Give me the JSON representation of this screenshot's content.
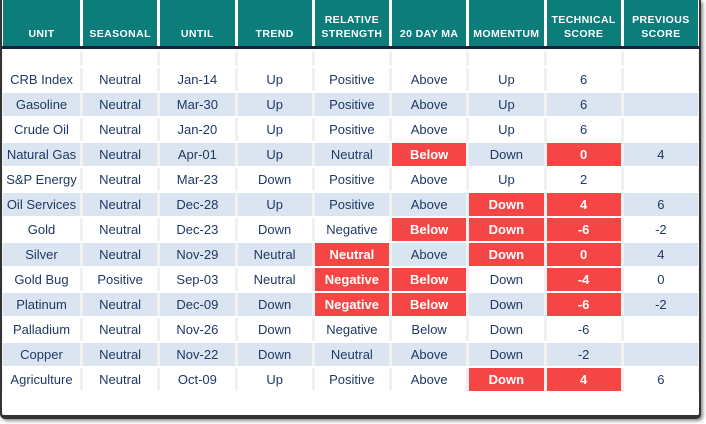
{
  "table": {
    "columns": [
      {
        "key": "unit",
        "label": "UNIT"
      },
      {
        "key": "seasonal",
        "label": "SEASONAL"
      },
      {
        "key": "until",
        "label": "UNTIL"
      },
      {
        "key": "trend",
        "label": "TREND"
      },
      {
        "key": "relative_strength",
        "label": "RELATIVE STRENGTH"
      },
      {
        "key": "ma_20",
        "label": "20 DAY MA"
      },
      {
        "key": "momentum",
        "label": "MOMENTUM"
      },
      {
        "key": "technical_score",
        "label": "TECHNICAL SCORE"
      },
      {
        "key": "previous_score",
        "label": "PREVIOUS SCORE"
      }
    ],
    "rows": [
      {
        "unit": "CRB Index",
        "seasonal": "Neutral",
        "until": "Jan-14",
        "trend": "Up",
        "relative_strength": "Positive",
        "ma_20": "Above",
        "momentum": "Up",
        "technical_score": "6",
        "previous_score": "",
        "highlighted": []
      },
      {
        "unit": "Gasoline",
        "seasonal": "Neutral",
        "until": "Mar-30",
        "trend": "Up",
        "relative_strength": "Positive",
        "ma_20": "Above",
        "momentum": "Up",
        "technical_score": "6",
        "previous_score": "",
        "highlighted": []
      },
      {
        "unit": "Crude Oil",
        "seasonal": "Neutral",
        "until": "Jan-20",
        "trend": "Up",
        "relative_strength": "Positive",
        "ma_20": "Above",
        "momentum": "Up",
        "technical_score": "6",
        "previous_score": "",
        "highlighted": []
      },
      {
        "unit": "Natural Gas",
        "seasonal": "Neutral",
        "until": "Apr-01",
        "trend": "Up",
        "relative_strength": "Neutral",
        "ma_20": "Below",
        "momentum": "Down",
        "technical_score": "0",
        "previous_score": "4",
        "highlighted": [
          "ma_20",
          "technical_score"
        ]
      },
      {
        "unit": "S&P Energy",
        "seasonal": "Neutral",
        "until": "Mar-23",
        "trend": "Down",
        "relative_strength": "Positive",
        "ma_20": "Above",
        "momentum": "Up",
        "technical_score": "2",
        "previous_score": "",
        "highlighted": []
      },
      {
        "unit": "Oil Services",
        "seasonal": "Neutral",
        "until": "Dec-28",
        "trend": "Up",
        "relative_strength": "Positive",
        "ma_20": "Above",
        "momentum": "Down",
        "technical_score": "4",
        "previous_score": "6",
        "highlighted": [
          "momentum",
          "technical_score"
        ]
      },
      {
        "unit": "Gold",
        "seasonal": "Neutral",
        "until": "Dec-23",
        "trend": "Down",
        "relative_strength": "Negative",
        "ma_20": "Below",
        "momentum": "Down",
        "technical_score": "-6",
        "previous_score": "-2",
        "highlighted": [
          "ma_20",
          "momentum",
          "technical_score"
        ]
      },
      {
        "unit": "Silver",
        "seasonal": "Neutral",
        "until": "Nov-29",
        "trend": "Neutral",
        "relative_strength": "Neutral",
        "ma_20": "Above",
        "momentum": "Down",
        "technical_score": "0",
        "previous_score": "4",
        "highlighted": [
          "relative_strength",
          "momentum",
          "technical_score"
        ]
      },
      {
        "unit": "Gold Bug",
        "seasonal": "Positive",
        "until": "Sep-03",
        "trend": "Neutral",
        "relative_strength": "Negative",
        "ma_20": "Below",
        "momentum": "Down",
        "technical_score": "-4",
        "previous_score": "0",
        "highlighted": [
          "relative_strength",
          "ma_20",
          "technical_score"
        ]
      },
      {
        "unit": "Platinum",
        "seasonal": "Neutral",
        "until": "Dec-09",
        "trend": "Down",
        "relative_strength": "Negative",
        "ma_20": "Below",
        "momentum": "Down",
        "technical_score": "-6",
        "previous_score": "-2",
        "highlighted": [
          "relative_strength",
          "ma_20",
          "technical_score"
        ]
      },
      {
        "unit": "Palladium",
        "seasonal": "Neutral",
        "until": "Nov-26",
        "trend": "Down",
        "relative_strength": "Negative",
        "ma_20": "Below",
        "momentum": "Down",
        "technical_score": "-6",
        "previous_score": "",
        "highlighted": []
      },
      {
        "unit": "Copper",
        "seasonal": "Neutral",
        "until": "Nov-22",
        "trend": "Down",
        "relative_strength": "Neutral",
        "ma_20": "Above",
        "momentum": "Down",
        "technical_score": "-2",
        "previous_score": "",
        "highlighted": []
      },
      {
        "unit": "Agriculture",
        "seasonal": "Neutral",
        "until": "Oct-09",
        "trend": "Up",
        "relative_strength": "Positive",
        "ma_20": "Above",
        "momentum": "Down",
        "technical_score": "4",
        "previous_score": "6",
        "highlighted": [
          "momentum",
          "technical_score"
        ]
      }
    ],
    "colors": {
      "header_bg": "#0d7d7b",
      "header_text": "#ffffff",
      "divider": "#16213c",
      "highlight_bg": "#f64545",
      "highlight_text": "#ffffff",
      "stripe_bg": "#dbe5f1",
      "body_text": "#1f3864",
      "frame_border": "#333333"
    }
  }
}
